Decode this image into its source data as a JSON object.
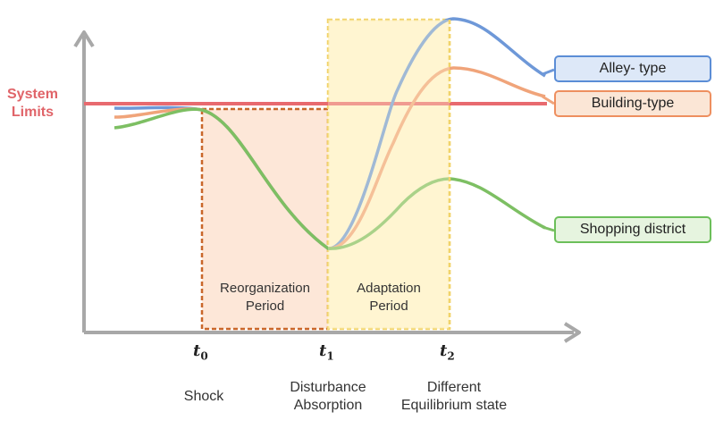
{
  "system_limits": {
    "line1": "System",
    "line2": "Limits"
  },
  "legend": [
    {
      "label": "Alley- type",
      "border": "#5b8dd6",
      "fill": "#dde8f8"
    },
    {
      "label": "Building-type",
      "border": "#ee8f5f",
      "fill": "#fbe6d6"
    },
    {
      "label": "Shopping district",
      "border": "#6cbf5a",
      "fill": "#e6f4df"
    }
  ],
  "ticks": [
    {
      "symbol": "t",
      "sub": "0"
    },
    {
      "symbol": "t",
      "sub": "1"
    },
    {
      "symbol": "t",
      "sub": "2"
    }
  ],
  "events": [
    {
      "line1": "Shock",
      "line2": ""
    },
    {
      "line1": "Disturbance",
      "line2": "Absorption"
    },
    {
      "line1": "Different",
      "line2": "Equilibrium state"
    }
  ],
  "periods": [
    {
      "line1": "Reorganization",
      "line2": "Period"
    },
    {
      "line1": "Adaptation",
      "line2": "Period"
    }
  ],
  "colors": {
    "system_limit": "#e86a6f",
    "axis": "#a8a8a8",
    "reorg_fill": "#fde7d8",
    "reorg_border": "#c9672a",
    "adapt_fill": "#fff5d2",
    "adapt_border": "#f1d36a",
    "alley": "#6e98d8",
    "building": "#f0a47a",
    "shopping": "#7dbf63"
  }
}
